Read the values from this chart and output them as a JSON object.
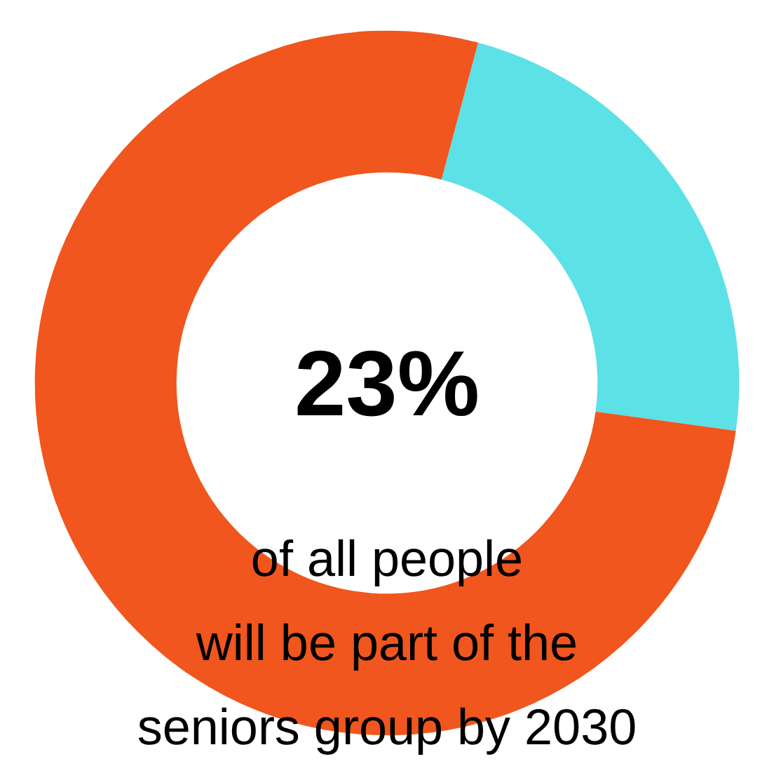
{
  "chart_data": {
    "type": "donut",
    "categories": [
      null,
      null
    ],
    "values": [
      23,
      77
    ],
    "colors": [
      "#5ce1e6",
      "#f0561d"
    ],
    "annotations": [
      "23%",
      "of all people\nwill be part of the\nseniors group by 2030"
    ]
  }
}
